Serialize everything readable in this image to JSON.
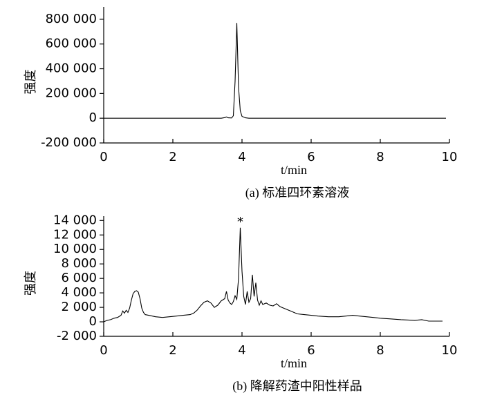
{
  "chart_data": [
    {
      "type": "line",
      "ylabel": "强度",
      "xlabel": "t/min",
      "caption": "(a) 标准四环素溶液",
      "color": "#000000",
      "x": [
        0,
        3.4,
        3.5,
        3.55,
        3.6,
        3.7,
        3.75,
        3.8,
        3.85,
        3.9,
        3.95,
        4.0,
        4.1,
        4.2,
        9.9
      ],
      "values": [
        0,
        0,
        5000,
        10000,
        3000,
        2000,
        20000,
        300000,
        770000,
        250000,
        60000,
        15000,
        3000,
        0,
        0
      ],
      "xlim": [
        0,
        10
      ],
      "xticks": [
        0,
        2,
        4,
        6,
        8,
        10
      ],
      "ylim": [
        -200000,
        900000
      ],
      "yticks": [
        {
          "value": -200000,
          "label": "-200 000"
        },
        0,
        {
          "value": 200000,
          "label": "200 000"
        },
        {
          "value": 400000,
          "label": "400 000"
        },
        {
          "value": 600000,
          "label": "600 000"
        },
        {
          "value": 800000,
          "label": "800 000"
        }
      ]
    },
    {
      "type": "line",
      "ylabel": "强度",
      "xlabel": "t/min",
      "caption": "(b) 降解药渣中阳性样品",
      "color": "#000000",
      "annotation": "*",
      "x": [
        0,
        0.1,
        0.2,
        0.3,
        0.4,
        0.5,
        0.55,
        0.6,
        0.65,
        0.7,
        0.75,
        0.8,
        0.85,
        0.9,
        0.95,
        1.0,
        1.05,
        1.1,
        1.15,
        1.2,
        1.3,
        1.5,
        1.7,
        1.9,
        2.1,
        2.3,
        2.5,
        2.6,
        2.7,
        2.8,
        2.9,
        3.0,
        3.1,
        3.2,
        3.3,
        3.4,
        3.5,
        3.55,
        3.6,
        3.65,
        3.7,
        3.75,
        3.8,
        3.85,
        3.9,
        3.95,
        4.0,
        4.05,
        4.1,
        4.15,
        4.2,
        4.25,
        4.3,
        4.35,
        4.4,
        4.45,
        4.5,
        4.55,
        4.6,
        4.7,
        4.8,
        4.9,
        5.0,
        5.1,
        5.2,
        5.4,
        5.6,
        5.8,
        6.0,
        6.2,
        6.5,
        6.8,
        7.0,
        7.2,
        7.4,
        7.6,
        7.8,
        8.0,
        8.3,
        8.6,
        9.0,
        9.2,
        9.4,
        9.8
      ],
      "values": [
        0,
        200,
        300,
        500,
        600,
        900,
        1500,
        1200,
        1600,
        1300,
        1900,
        3000,
        3900,
        4200,
        4300,
        4100,
        3200,
        1900,
        1300,
        1000,
        900,
        700,
        600,
        700,
        800,
        900,
        1000,
        1200,
        1600,
        2200,
        2700,
        2900,
        2600,
        2000,
        2300,
        2900,
        3200,
        4200,
        3000,
        2600,
        2400,
        2800,
        3600,
        3100,
        6000,
        13000,
        7000,
        3500,
        2400,
        4200,
        2700,
        3200,
        6500,
        3500,
        5400,
        3000,
        2300,
        2900,
        2400,
        2600,
        2300,
        2200,
        2500,
        2100,
        1900,
        1500,
        1100,
        1000,
        900,
        800,
        700,
        700,
        800,
        900,
        800,
        700,
        600,
        500,
        400,
        300,
        200,
        300,
        100,
        100
      ],
      "xlim": [
        0,
        10
      ],
      "xticks": [
        0,
        2,
        4,
        6,
        8,
        10
      ],
      "ylim": [
        -2000,
        14600
      ],
      "yticks": [
        {
          "value": -2000,
          "label": "-2 000"
        },
        0,
        {
          "value": 2000,
          "label": "2 000"
        },
        {
          "value": 4000,
          "label": "4 000"
        },
        {
          "value": 6000,
          "label": "6 000"
        },
        {
          "value": 8000,
          "label": "8 000"
        },
        {
          "value": 10000,
          "label": "10 000"
        },
        {
          "value": 12000,
          "label": "12 000"
        },
        {
          "value": 14000,
          "label": "14 000"
        }
      ]
    }
  ]
}
